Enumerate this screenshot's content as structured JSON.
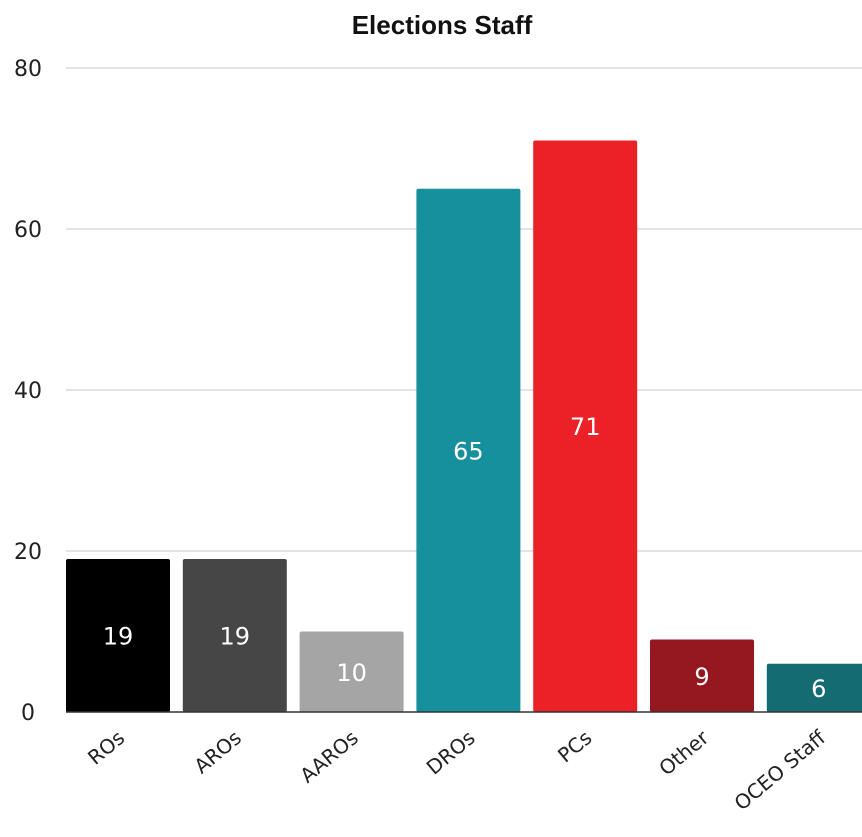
{
  "chart_data": {
    "type": "bar",
    "title": "Elections Staff",
    "xlabel": "",
    "ylabel": "",
    "categories": [
      "ROs",
      "AROs",
      "AAROs",
      "DROs",
      "PCs",
      "Other",
      "OCEO Staff"
    ],
    "values": [
      19,
      19,
      10,
      65,
      71,
      9,
      6
    ],
    "data_labels": [
      "19",
      "19",
      "10",
      "65",
      "71",
      "9",
      "6"
    ],
    "colors": [
      "#000000",
      "#464646",
      "#a5a5a5",
      "#17909e",
      "#ec2128",
      "#951820",
      "#146c72"
    ],
    "ylim": [
      0,
      80
    ],
    "yticks": [
      0,
      20,
      40,
      60,
      80
    ],
    "grid": true,
    "legend": "none"
  }
}
